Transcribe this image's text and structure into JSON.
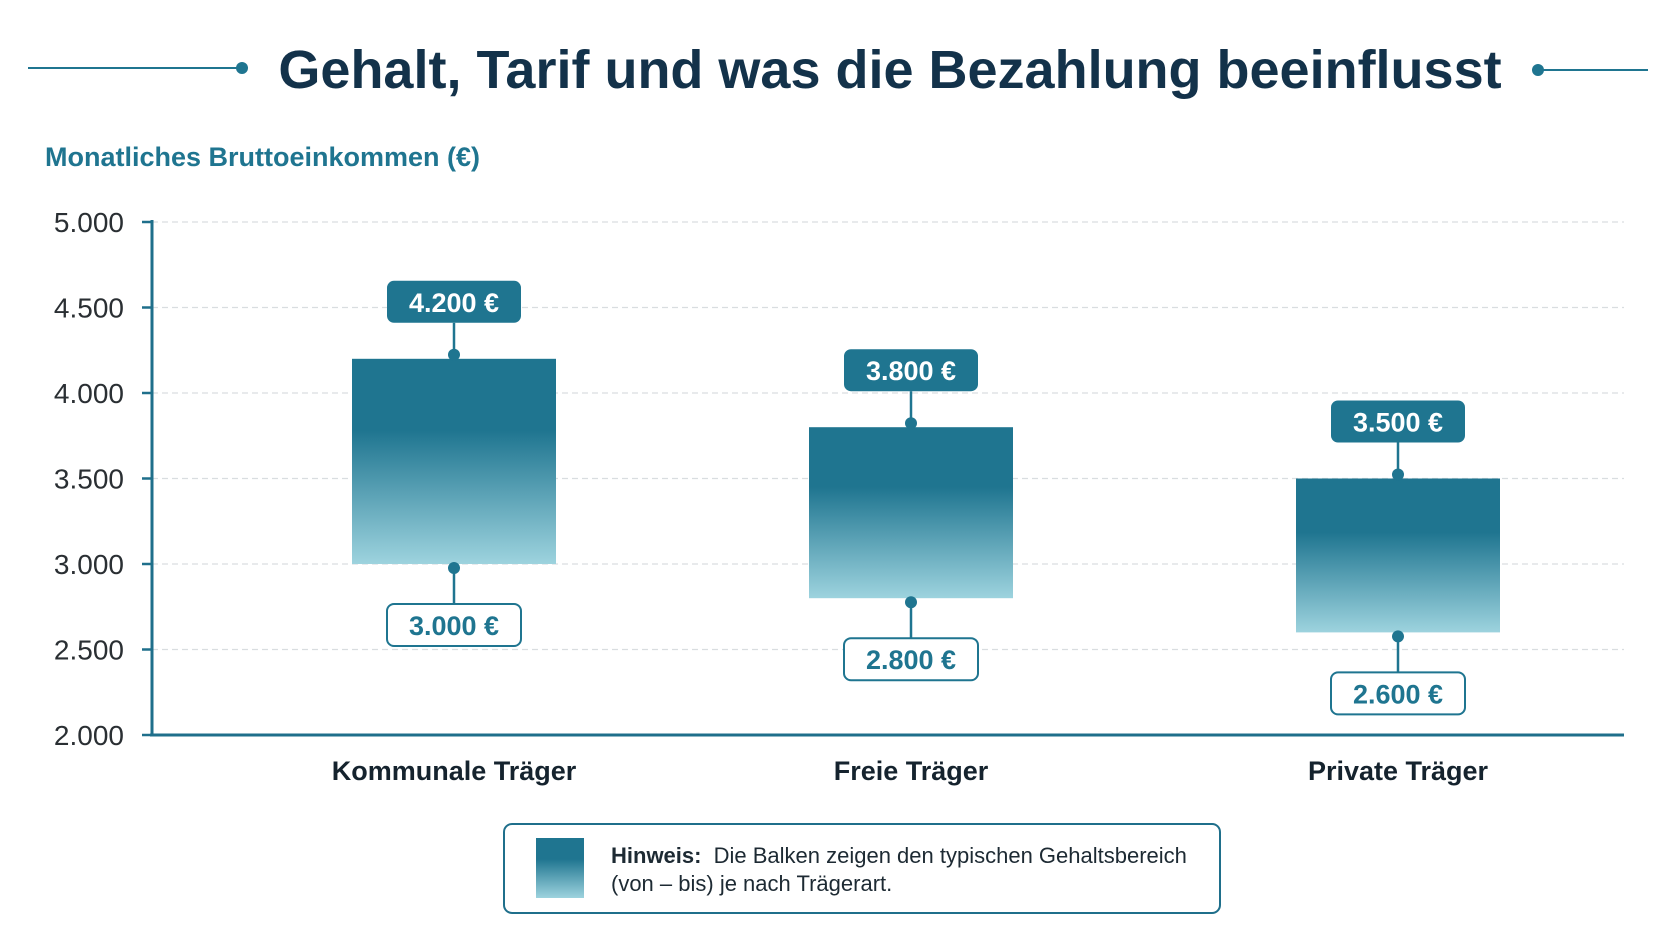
{
  "colors": {
    "title": "#13324a",
    "accent": "#1f7590",
    "bar_top": "#1f7590",
    "bar_bottom": "#9dd3de",
    "axis": "#1f6f8b",
    "grid": "#d9dde0",
    "tick": "#2a2f33",
    "category": "#15232e"
  },
  "chart_data": {
    "type": "bar",
    "title": "Gehalt, Tarif und was die Bezahlung beeinflusst",
    "ylabel": "Monatliches Bruttoeinkommen (€)",
    "ylim": [
      2000,
      5000
    ],
    "yticks": [
      2000,
      2500,
      3000,
      3500,
      4000,
      4500,
      5000
    ],
    "ytick_labels": [
      "2.000",
      "2.500",
      "3.000",
      "3.500",
      "4.000",
      "4.500",
      "5.000"
    ],
    "grid": true,
    "categories": [
      "Kommunale Träger",
      "Freie Träger",
      "Private Träger"
    ],
    "series": [
      {
        "low": 3000,
        "high": 4200,
        "low_label": "3.000 €",
        "high_label": "4.200 €"
      },
      {
        "low": 2800,
        "high": 3800,
        "low_label": "2.800 €",
        "high_label": "3.800 €"
      },
      {
        "low": 2600,
        "high": 3500,
        "low_label": "2.600 €",
        "high_label": "3.500 €"
      }
    ],
    "legend": {
      "position": "bottom-center",
      "bold": "Hinweis:",
      "line1": "Die Balken zeigen den typischen Gehaltsbereich",
      "line2": "(von – bis) je nach Trägerart."
    }
  }
}
